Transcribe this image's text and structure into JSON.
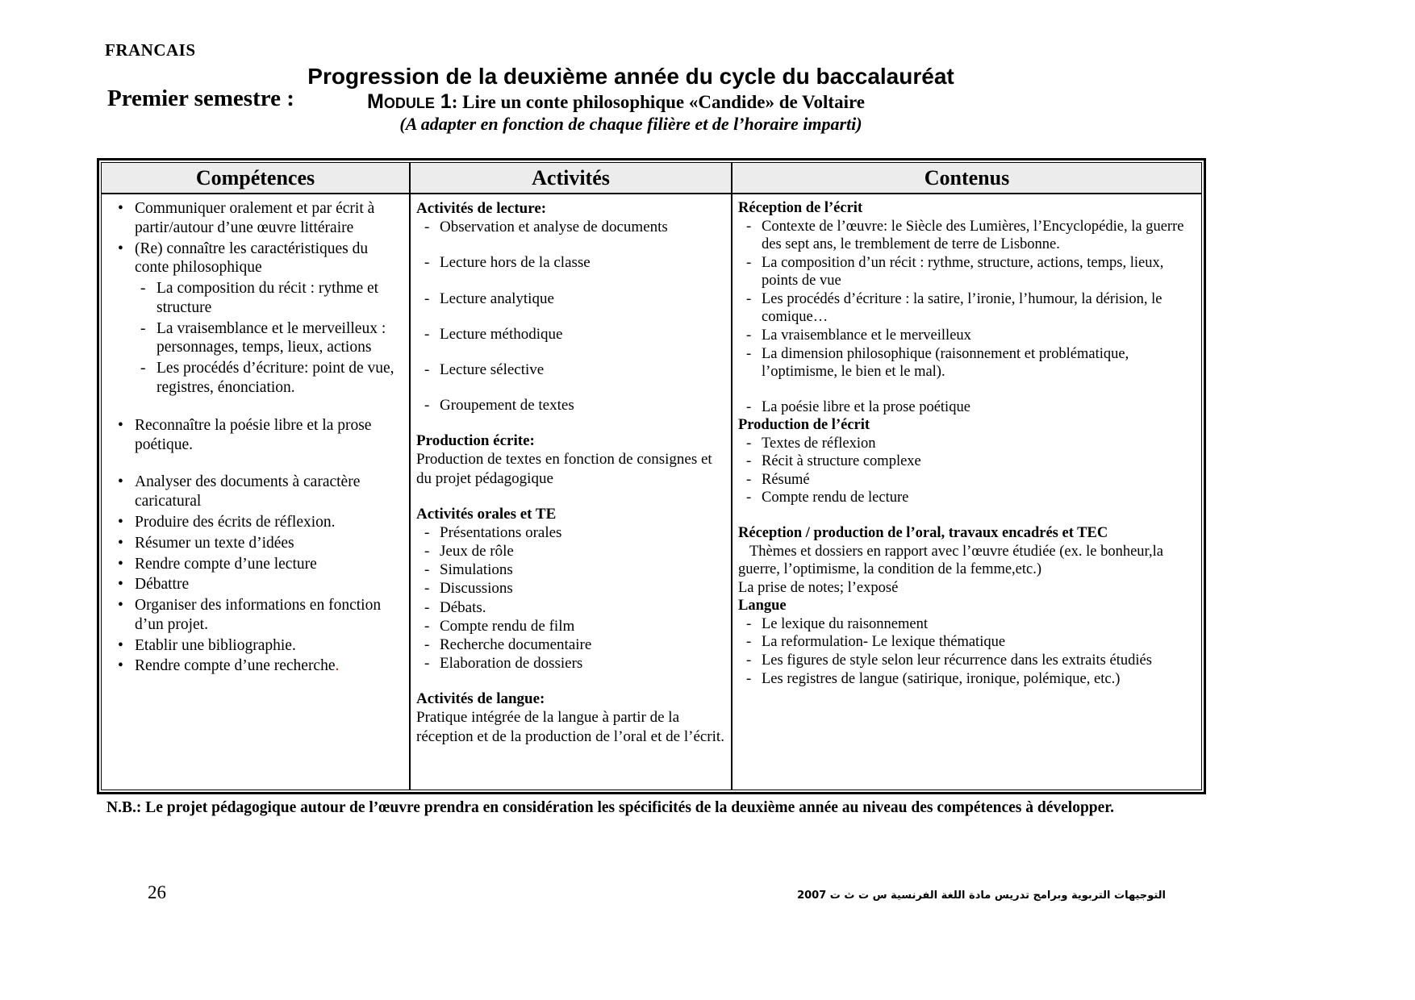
{
  "header": {
    "subject": "FRANCAIS",
    "title": "Progression de la deuxième année du cycle du baccalauréat",
    "semester": "Premier semestre :",
    "module_label": "Module 1",
    "module_title": ": Lire un conte philosophique «Candide» de Voltaire",
    "adaptation_note": "(A adapter en fonction de chaque filière et de l’horaire imparti)"
  },
  "table": {
    "columns": [
      "Compétences",
      "Activités",
      "Contenus"
    ],
    "competences": [
      {
        "t": "b",
        "text": "Communiquer oralement et par écrit à partir/autour d’une œuvre littéraire"
      },
      {
        "t": "b",
        "text": "(Re) connaître les caractéristiques du conte philosophique"
      },
      {
        "t": "d",
        "text": "La composition du récit : rythme et structure"
      },
      {
        "t": "d",
        "text": "La vraisemblance et le merveilleux : personnages, temps, lieux, actions"
      },
      {
        "t": "d",
        "text": "Les procédés d’écriture: point de vue, registres, énonciation."
      },
      {
        "t": "sp"
      },
      {
        "t": "b",
        "text": "Reconnaître la poésie libre et la prose poétique."
      },
      {
        "t": "sp"
      },
      {
        "t": "b",
        "text": "Analyser des documents à caractère caricatural"
      },
      {
        "t": "b",
        "text": "Produire des écrits de réflexion."
      },
      {
        "t": "b",
        "text": "Résumer un texte d’idées"
      },
      {
        "t": "b",
        "text": "Rendre compte d’une lecture"
      },
      {
        "t": "b",
        "text": "Débattre"
      },
      {
        "t": "b",
        "text": "Organiser des informations en fonction d’un projet."
      },
      {
        "t": "b",
        "text": "Etablir une bibliographie."
      },
      {
        "t": "b",
        "text": "Rendre compte d’une recherche",
        "suffix": ".",
        "suffix_color": "#cc0000"
      }
    ],
    "activites": [
      {
        "t": "h",
        "text": "Activités de lecture:"
      },
      {
        "t": "d",
        "text": "Observation et analyse de documents"
      },
      {
        "t": "sp"
      },
      {
        "t": "d",
        "text": "Lecture hors de la classe"
      },
      {
        "t": "sp"
      },
      {
        "t": "d",
        "text": "Lecture analytique"
      },
      {
        "t": "sp"
      },
      {
        "t": "d",
        "text": "Lecture méthodique"
      },
      {
        "t": "sp"
      },
      {
        "t": "d",
        "text": "Lecture sélective"
      },
      {
        "t": "sp"
      },
      {
        "t": "d",
        "text": "Groupement de textes"
      },
      {
        "t": "sp"
      },
      {
        "t": "h",
        "text": "Production écrite:"
      },
      {
        "t": "p",
        "text": "Production de textes en fonction de consignes et du projet pédagogique"
      },
      {
        "t": "sp"
      },
      {
        "t": "h",
        "text": "Activités orales et TE"
      },
      {
        "t": "d",
        "text": "Présentations orales"
      },
      {
        "t": "d",
        "text": "Jeux de rôle"
      },
      {
        "t": "d",
        "text": "Simulations"
      },
      {
        "t": "d",
        "text": "Discussions"
      },
      {
        "t": "d",
        "text": "Débats."
      },
      {
        "t": "d",
        "text": "Compte rendu de film"
      },
      {
        "t": "d",
        "text": "Recherche documentaire"
      },
      {
        "t": "d",
        "text": "Elaboration de dossiers"
      },
      {
        "t": "sp"
      },
      {
        "t": "h",
        "text": "Activités de langue:"
      },
      {
        "t": "p",
        "text": "Pratique intégrée de la langue à partir de la réception et de la production de l’oral et de  l’écrit."
      }
    ],
    "contenus": [
      {
        "t": "h",
        "text": "Réception de l’écrit"
      },
      {
        "t": "d",
        "text": "Contexte de l’œuvre: le Siècle des Lumières, l’Encyclopédie, la guerre des sept ans, le tremblement de terre de Lisbonne."
      },
      {
        "t": "d",
        "text": "La composition d’un récit : rythme, structure, actions, temps, lieux, points de vue"
      },
      {
        "t": "d",
        "text": "Les procédés d’écriture : la satire, l’ironie, l’humour, la dérision, le comique…"
      },
      {
        "t": "d",
        "text": "La vraisemblance et le merveilleux"
      },
      {
        "t": "d",
        "text": "La dimension philosophique (raisonnement et problématique, l’optimisme, le bien et le mal)."
      },
      {
        "t": "sp"
      },
      {
        "t": "d",
        "text": "La poésie libre et la prose poétique"
      },
      {
        "t": "h",
        "text": "Production de l’écrit"
      },
      {
        "t": "d",
        "text": "Textes de réflexion"
      },
      {
        "t": "d",
        "text": "Récit à structure complexe"
      },
      {
        "t": "d",
        "text": "Résumé"
      },
      {
        "t": "d",
        "text": "Compte rendu de lecture"
      },
      {
        "t": "sp"
      },
      {
        "t": "h",
        "text": "Réception / production de l’oral, travaux encadrés et TEC"
      },
      {
        "t": "p",
        "ti": true,
        "text": "Thèmes et dossiers en rapport avec l’œuvre étudiée (ex. le bonheur,la guerre, l’optimisme, la condition de la femme,etc.)"
      },
      {
        "t": "p",
        "text": "La prise de notes; l’exposé"
      },
      {
        "t": "h",
        "text": "Langue"
      },
      {
        "t": "d",
        "text": "Le lexique du raisonnement"
      },
      {
        "t": "d",
        "text": "La reformulation- Le lexique thématique"
      },
      {
        "t": "d",
        "text": "Les figures de style selon leur récurrence  dans les extraits étudiés"
      },
      {
        "t": "d",
        "text": "Les registres de langue (satirique, ironique, polémique, etc.)"
      }
    ]
  },
  "footer": {
    "nb_note": "N.B.: Le projet pédagogique autour de l’œuvre prendra en considération les spécificités de la deuxième année au niveau des compétences à développer.",
    "page_number": "26",
    "arabic_note": "التوجيهات التربوية وبرامج تدريس مادة اللغة الفرنسية س ت ث ت 2007"
  }
}
